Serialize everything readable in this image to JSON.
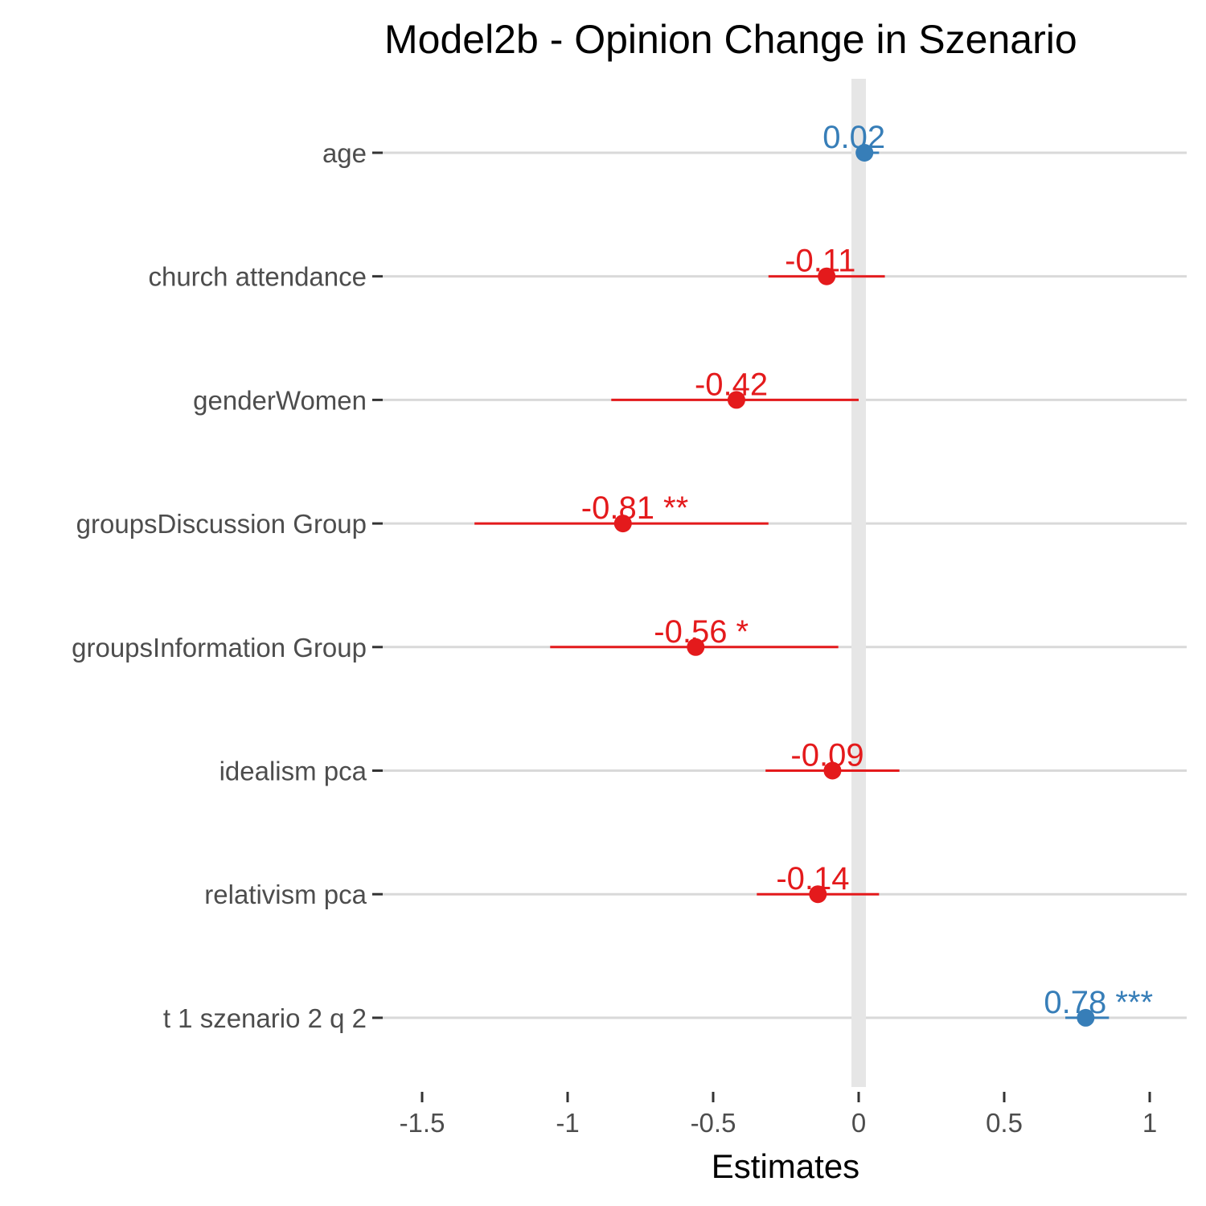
{
  "chart_data": {
    "type": "forest",
    "title": "Model2b - Opinion Change in Szenario",
    "xlabel": "Estimates",
    "xlim": [
      -1.63,
      1.13
    ],
    "x_ticks": [
      -1.5,
      -1,
      -0.5,
      0,
      0.5,
      1
    ],
    "x_tick_labels": [
      "-1.5",
      "-1",
      "-0.5",
      "0",
      "0.5",
      "1"
    ],
    "zero_line": 0,
    "grid": "horizontal major",
    "colors": {
      "positive": "#377eb8",
      "negative": "#e41a1c",
      "grid": "#d9d9d9",
      "zero": "#e6e6e6"
    },
    "terms": [
      {
        "label": "age",
        "estimate": 0.02,
        "ci_low": -0.01,
        "ci_high": 0.07,
        "value_label": "0.02",
        "sign": "positive"
      },
      {
        "label": "church attendance",
        "estimate": -0.11,
        "ci_low": -0.31,
        "ci_high": 0.09,
        "value_label": "-0.11",
        "sign": "negative"
      },
      {
        "label": "genderWomen",
        "estimate": -0.42,
        "ci_low": -0.85,
        "ci_high": 0.0,
        "value_label": "-0.42",
        "sign": "negative"
      },
      {
        "label": "groupsDiscussion Group",
        "estimate": -0.81,
        "ci_low": -1.32,
        "ci_high": -0.31,
        "value_label": "-0.81 **",
        "sign": "negative"
      },
      {
        "label": "groupsInformation Group",
        "estimate": -0.56,
        "ci_low": -1.06,
        "ci_high": -0.07,
        "value_label": "-0.56 *",
        "sign": "negative"
      },
      {
        "label": "idealism pca",
        "estimate": -0.09,
        "ci_low": -0.32,
        "ci_high": 0.14,
        "value_label": "-0.09",
        "sign": "negative"
      },
      {
        "label": "relativism pca",
        "estimate": -0.14,
        "ci_low": -0.35,
        "ci_high": 0.07,
        "value_label": "-0.14",
        "sign": "negative"
      },
      {
        "label": "t 1 szenario 2 q 2",
        "estimate": 0.78,
        "ci_low": 0.71,
        "ci_high": 0.86,
        "value_label": "0.78 ***",
        "sign": "positive"
      }
    ]
  }
}
